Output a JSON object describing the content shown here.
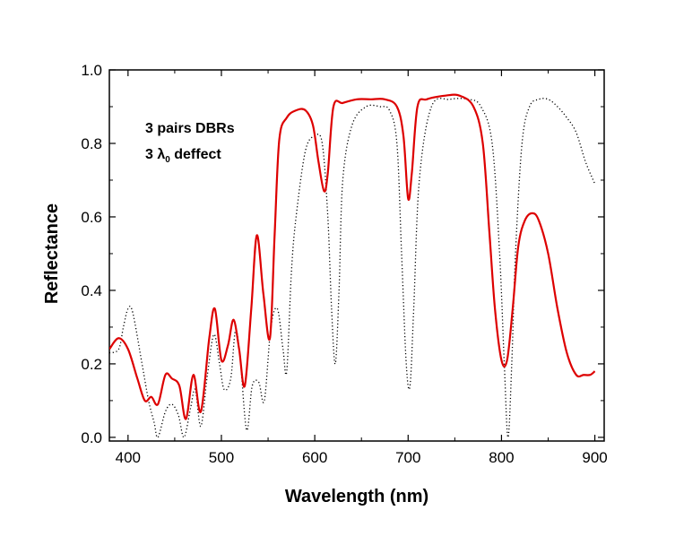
{
  "chart_data": {
    "type": "line",
    "xlabel": "Wavelength (nm)",
    "ylabel": "Reflectance",
    "xlim": [
      380,
      910
    ],
    "ylim": [
      -0.01,
      1.0
    ],
    "x_ticks": [
      400,
      500,
      600,
      700,
      800,
      900
    ],
    "y_ticks": [
      0.0,
      0.2,
      0.4,
      0.6,
      0.8,
      1.0
    ],
    "x_tick_labels": [
      "400",
      "500",
      "600",
      "700",
      "800",
      "900"
    ],
    "y_tick_labels": [
      "0.0",
      "0.2",
      "0.4",
      "0.6",
      "0.8",
      "1.0"
    ],
    "grid": false,
    "annotation": {
      "line1": "3 pairs DBRs",
      "line2_prefix": "3 λ",
      "line2_sub": "0",
      "line2_suffix": " deffect"
    },
    "series": [
      {
        "style": "solid",
        "color": "#dd0000",
        "x": [
          380,
          390,
          400,
          410,
          418,
          425,
          432,
          440,
          447,
          455,
          462,
          470,
          478,
          487,
          493,
          500,
          507,
          513,
          519,
          525,
          532,
          538,
          545,
          552,
          557,
          562,
          570,
          580,
          590,
          598,
          604,
          610,
          614,
          620,
          630,
          645,
          660,
          675,
          688,
          695,
          700,
          704,
          710,
          720,
          740,
          755,
          770,
          780,
          787,
          793,
          800,
          806,
          812,
          818,
          825,
          833,
          840,
          850,
          860,
          870,
          880,
          888,
          895,
          900
        ],
        "y": [
          0.24,
          0.27,
          0.24,
          0.16,
          0.1,
          0.11,
          0.09,
          0.17,
          0.16,
          0.14,
          0.05,
          0.17,
          0.07,
          0.27,
          0.35,
          0.21,
          0.25,
          0.32,
          0.24,
          0.14,
          0.35,
          0.55,
          0.39,
          0.27,
          0.55,
          0.81,
          0.87,
          0.89,
          0.89,
          0.85,
          0.75,
          0.67,
          0.72,
          0.9,
          0.91,
          0.92,
          0.92,
          0.92,
          0.9,
          0.82,
          0.65,
          0.72,
          0.9,
          0.92,
          0.93,
          0.93,
          0.9,
          0.8,
          0.56,
          0.35,
          0.21,
          0.21,
          0.35,
          0.52,
          0.59,
          0.61,
          0.59,
          0.5,
          0.35,
          0.23,
          0.17,
          0.17,
          0.17,
          0.18
        ]
      },
      {
        "style": "dotted",
        "color": "#000000",
        "x": [
          380,
          390,
          395,
          400,
          405,
          415,
          422,
          428,
          432,
          440,
          447,
          454,
          460,
          467,
          472,
          478,
          485,
          492,
          498,
          503,
          510,
          515,
          520,
          527,
          533,
          540,
          546,
          553,
          560,
          566,
          570,
          575,
          580,
          590,
          600,
          608,
          614,
          618,
          622,
          626,
          630,
          640,
          655,
          670,
          680,
          688,
          693,
          698,
          702,
          706,
          712,
          725,
          745,
          765,
          778,
          790,
          798,
          803,
          807,
          811,
          815,
          822,
          830,
          840,
          850,
          860,
          870,
          880,
          890,
          900
        ],
        "y": [
          0.23,
          0.24,
          0.3,
          0.35,
          0.34,
          0.2,
          0.1,
          0.04,
          0.0,
          0.07,
          0.09,
          0.06,
          0.0,
          0.08,
          0.13,
          0.03,
          0.17,
          0.28,
          0.2,
          0.13,
          0.16,
          0.29,
          0.22,
          0.02,
          0.14,
          0.15,
          0.1,
          0.3,
          0.35,
          0.24,
          0.18,
          0.45,
          0.6,
          0.78,
          0.82,
          0.8,
          0.6,
          0.35,
          0.2,
          0.4,
          0.7,
          0.85,
          0.9,
          0.9,
          0.89,
          0.8,
          0.5,
          0.2,
          0.14,
          0.35,
          0.7,
          0.9,
          0.92,
          0.92,
          0.9,
          0.8,
          0.5,
          0.2,
          0.0,
          0.2,
          0.5,
          0.8,
          0.9,
          0.92,
          0.92,
          0.9,
          0.87,
          0.83,
          0.75,
          0.69
        ]
      }
    ]
  }
}
